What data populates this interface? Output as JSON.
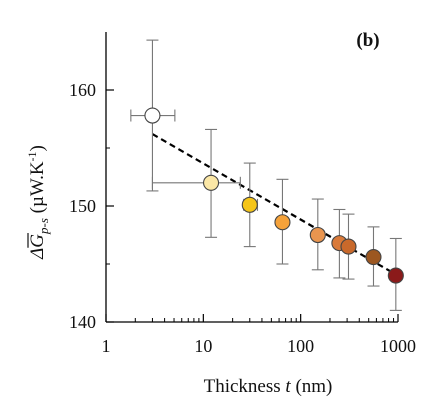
{
  "chart_data": {
    "type": "scatter",
    "panel_label": "(b)",
    "xscale": "log",
    "xlim": [
      1,
      1000
    ],
    "ylim": [
      140,
      165
    ],
    "x_ticks": [
      1,
      10,
      100,
      1000
    ],
    "x_tick_labels": [
      "1",
      "10",
      "100",
      "1000"
    ],
    "y_ticks": [
      140,
      150,
      160
    ],
    "y_tick_labels": [
      "140",
      "150",
      "160"
    ],
    "xlabel": {
      "prefix": "Thickness ",
      "var": "t",
      "suffix": " (nm)"
    },
    "ylabel": {
      "symbol": "ΔG",
      "subscript": "p-s",
      "units": " (µW.K",
      "exp": "-1",
      "close": ")"
    },
    "grid": false,
    "legend": "none",
    "points": [
      {
        "x": 3,
        "y": 157.8,
        "yerr": [
          6.5,
          6.5
        ],
        "xerr": [
          1.2,
          2.1
        ],
        "color": "#ffffff"
      },
      {
        "x": 12,
        "y": 152.0,
        "yerr": [
          4.7,
          4.6
        ],
        "xerr": [
          9.0,
          12.0
        ],
        "color": "#fbe7a6"
      },
      {
        "x": 30,
        "y": 150.1,
        "yerr": [
          3.6,
          3.6
        ],
        "xerr": [
          4.0,
          6.0
        ],
        "color": "#f5c518"
      },
      {
        "x": 65,
        "y": 148.6,
        "yerr": [
          3.6,
          3.7
        ],
        "xerr": [
          5.0,
          6.0
        ],
        "color": "#f5a23a"
      },
      {
        "x": 150,
        "y": 147.5,
        "yerr": [
          3.0,
          3.1
        ],
        "xerr": [
          10.0,
          10.0
        ],
        "color": "#e9954f"
      },
      {
        "x": 250,
        "y": 146.8,
        "yerr": [
          3.0,
          2.9
        ],
        "xerr": [
          15.0,
          15.0
        ],
        "color": "#d97a3a"
      },
      {
        "x": 310,
        "y": 146.5,
        "yerr": [
          2.8,
          2.8
        ],
        "xerr": [
          15.0,
          15.0
        ],
        "color": "#c9692b"
      },
      {
        "x": 560,
        "y": 145.6,
        "yerr": [
          2.5,
          2.6
        ],
        "xerr": [
          20.0,
          20.0
        ],
        "color": "#9c5720"
      },
      {
        "x": 950,
        "y": 144.0,
        "yerr": [
          3.0,
          3.2
        ],
        "xerr": [
          30.0,
          30.0
        ],
        "color": "#8b1a1a"
      }
    ],
    "fit_line": {
      "x": [
        3,
        950
      ],
      "y": [
        156.2,
        144.1
      ],
      "style": "dashed",
      "color": "#000000"
    }
  }
}
